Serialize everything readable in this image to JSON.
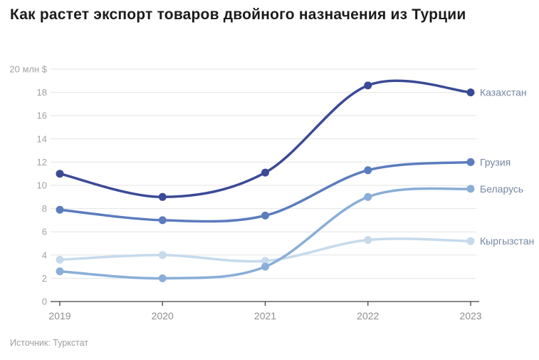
{
  "title": "Как растет экспорт товаров двойного назначения из Турции",
  "source": "Источник: Туркстат",
  "colors": {
    "grid": "#e4e4e4",
    "axis": "#424242",
    "y_label": "#a2a2a2",
    "x_label": "#8e8e8e",
    "series_label": "#7687a3",
    "title": "#1c1c1c",
    "source": "#9d9d9d"
  },
  "chart_data": {
    "type": "line",
    "title": "Как растет экспорт товаров двойного назначения из Турции",
    "x": [
      "2019",
      "2020",
      "2021",
      "2022",
      "2023"
    ],
    "series": [
      {
        "name": "Казахстан",
        "values": [
          11,
          9,
          11.1,
          18.6,
          18
        ],
        "color": "#3b4a96"
      },
      {
        "name": "Грузия",
        "values": [
          7.9,
          7,
          7.4,
          11.3,
          12
        ],
        "color": "#5b7cbd"
      },
      {
        "name": "Беларусь",
        "values": [
          2.6,
          2,
          3,
          9,
          9.7
        ],
        "color": "#89aed8"
      },
      {
        "name": "Кыргызстан",
        "values": [
          3.6,
          4,
          3.5,
          5.3,
          5.2
        ],
        "color": "#c6daec"
      }
    ],
    "ylabel": "млн $",
    "ytick_top_label": "20 млн $",
    "yticks": [
      0,
      2,
      4,
      6,
      8,
      10,
      12,
      14,
      16,
      18,
      20
    ],
    "ylim": [
      0,
      20
    ],
    "grid": true,
    "legend_position": "right-of-line-end"
  }
}
